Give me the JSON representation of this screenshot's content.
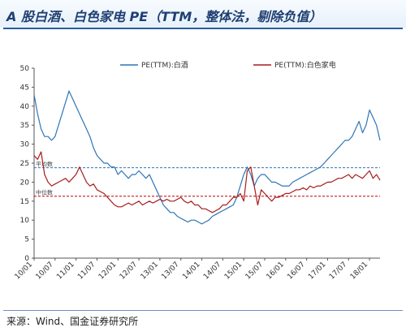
{
  "title": "A 股白酒、白色家电 PE（TTM，整体法，剔除负值）",
  "source": "来源：Wind、国金证券研究所",
  "chart_data": {
    "type": "line",
    "title": "A 股白酒、白色家电 PE（TTM，整体法，剔除负值）",
    "xlabel": "",
    "ylabel": "",
    "ylim": [
      0,
      50
    ],
    "yticks": [
      0,
      5,
      10,
      15,
      20,
      25,
      30,
      35,
      40,
      45,
      50
    ],
    "xticks": [
      "10/01",
      "10/07",
      "11/01",
      "11/07",
      "12/01",
      "12/07",
      "13/01",
      "13/07",
      "14/01",
      "14/07",
      "15/01",
      "15/07",
      "16/01",
      "16/07",
      "17/01",
      "17/07",
      "18/01"
    ],
    "x_range_months": [
      0,
      99
    ],
    "grid": false,
    "legend": "top",
    "series": [
      {
        "name": "PE(TTM):白酒",
        "color": "#2e75b6",
        "points": [
          [
            0,
            43
          ],
          [
            1,
            38
          ],
          [
            2,
            34
          ],
          [
            3,
            32
          ],
          [
            4,
            32
          ],
          [
            5,
            31
          ],
          [
            6,
            32
          ],
          [
            7,
            35
          ],
          [
            8,
            38
          ],
          [
            9,
            41
          ],
          [
            10,
            44
          ],
          [
            11,
            42
          ],
          [
            12,
            40
          ],
          [
            13,
            38
          ],
          [
            14,
            36
          ],
          [
            15,
            34
          ],
          [
            16,
            32
          ],
          [
            17,
            29
          ],
          [
            18,
            27
          ],
          [
            19,
            26
          ],
          [
            20,
            25
          ],
          [
            21,
            25
          ],
          [
            22,
            24
          ],
          [
            23,
            24
          ],
          [
            24,
            22
          ],
          [
            25,
            23
          ],
          [
            26,
            22
          ],
          [
            27,
            21
          ],
          [
            28,
            22
          ],
          [
            29,
            22
          ],
          [
            30,
            23
          ],
          [
            31,
            22
          ],
          [
            32,
            21
          ],
          [
            33,
            22
          ],
          [
            34,
            20
          ],
          [
            35,
            18
          ],
          [
            36,
            16
          ],
          [
            37,
            14
          ],
          [
            38,
            13
          ],
          [
            39,
            12
          ],
          [
            40,
            12
          ],
          [
            41,
            11
          ],
          [
            42,
            10.5
          ],
          [
            43,
            10
          ],
          [
            44,
            9.5
          ],
          [
            45,
            10
          ],
          [
            46,
            10
          ],
          [
            47,
            9.5
          ],
          [
            48,
            9
          ],
          [
            49,
            9.5
          ],
          [
            50,
            10
          ],
          [
            51,
            11
          ],
          [
            52,
            11.5
          ],
          [
            53,
            12
          ],
          [
            54,
            12.5
          ],
          [
            55,
            13
          ],
          [
            56,
            13.5
          ],
          [
            57,
            14
          ],
          [
            58,
            16
          ],
          [
            59,
            19
          ],
          [
            60,
            22
          ],
          [
            61,
            24
          ],
          [
            62,
            22
          ],
          [
            63,
            19
          ],
          [
            64,
            21
          ],
          [
            65,
            22
          ],
          [
            66,
            22
          ],
          [
            67,
            21
          ],
          [
            68,
            20
          ],
          [
            69,
            20
          ],
          [
            70,
            19.5
          ],
          [
            71,
            19
          ],
          [
            72,
            19
          ],
          [
            73,
            19
          ],
          [
            74,
            20
          ],
          [
            75,
            20.5
          ],
          [
            76,
            21
          ],
          [
            77,
            21.5
          ],
          [
            78,
            22
          ],
          [
            79,
            22.5
          ],
          [
            80,
            23
          ],
          [
            81,
            23.5
          ],
          [
            82,
            24
          ],
          [
            83,
            25
          ],
          [
            84,
            26
          ],
          [
            85,
            27
          ],
          [
            86,
            28
          ],
          [
            87,
            29
          ],
          [
            88,
            30
          ],
          [
            89,
            31
          ],
          [
            90,
            31
          ],
          [
            91,
            32
          ],
          [
            92,
            34
          ],
          [
            93,
            36
          ],
          [
            94,
            33
          ],
          [
            95,
            35
          ],
          [
            96,
            39
          ],
          [
            97,
            37
          ],
          [
            98,
            35
          ],
          [
            99,
            31
          ]
        ]
      },
      {
        "name": "PE(TTM):白色家电",
        "color": "#a61c1c",
        "points": [
          [
            0,
            27
          ],
          [
            1,
            26
          ],
          [
            2,
            28
          ],
          [
            3,
            22
          ],
          [
            4,
            20
          ],
          [
            5,
            19
          ],
          [
            6,
            19.5
          ],
          [
            7,
            20
          ],
          [
            8,
            20.5
          ],
          [
            9,
            21
          ],
          [
            10,
            20
          ],
          [
            11,
            21
          ],
          [
            12,
            22
          ],
          [
            13,
            24
          ],
          [
            14,
            22
          ],
          [
            15,
            20
          ],
          [
            16,
            19
          ],
          [
            17,
            19.5
          ],
          [
            18,
            18
          ],
          [
            19,
            17.5
          ],
          [
            20,
            17
          ],
          [
            21,
            16
          ],
          [
            22,
            15
          ],
          [
            23,
            14
          ],
          [
            24,
            13.5
          ],
          [
            25,
            13.5
          ],
          [
            26,
            14
          ],
          [
            27,
            14.5
          ],
          [
            28,
            14
          ],
          [
            29,
            14.5
          ],
          [
            30,
            15
          ],
          [
            31,
            14
          ],
          [
            32,
            14.5
          ],
          [
            33,
            15
          ],
          [
            34,
            14.5
          ],
          [
            35,
            15
          ],
          [
            36,
            15.5
          ],
          [
            37,
            15
          ],
          [
            38,
            15.5
          ],
          [
            39,
            15
          ],
          [
            40,
            15
          ],
          [
            41,
            15.5
          ],
          [
            42,
            16
          ],
          [
            43,
            15
          ],
          [
            44,
            14.5
          ],
          [
            45,
            15
          ],
          [
            46,
            14
          ],
          [
            47,
            14
          ],
          [
            48,
            13
          ],
          [
            49,
            13
          ],
          [
            50,
            12.5
          ],
          [
            51,
            12
          ],
          [
            52,
            12.5
          ],
          [
            53,
            13
          ],
          [
            54,
            14
          ],
          [
            55,
            14
          ],
          [
            56,
            15
          ],
          [
            57,
            16
          ],
          [
            58,
            16
          ],
          [
            59,
            17
          ],
          [
            60,
            15
          ],
          [
            61,
            23
          ],
          [
            62,
            24
          ],
          [
            63,
            19
          ],
          [
            64,
            14
          ],
          [
            65,
            18
          ],
          [
            66,
            17
          ],
          [
            67,
            16
          ],
          [
            68,
            15
          ],
          [
            69,
            16
          ],
          [
            70,
            16
          ],
          [
            71,
            16.5
          ],
          [
            72,
            17
          ],
          [
            73,
            17
          ],
          [
            74,
            17.5
          ],
          [
            75,
            18
          ],
          [
            76,
            18
          ],
          [
            77,
            18.5
          ],
          [
            78,
            18
          ],
          [
            79,
            19
          ],
          [
            80,
            18.5
          ],
          [
            81,
            19
          ],
          [
            82,
            19
          ],
          [
            83,
            19.5
          ],
          [
            84,
            20
          ],
          [
            85,
            20
          ],
          [
            86,
            20.5
          ],
          [
            87,
            21
          ],
          [
            88,
            21
          ],
          [
            89,
            21.5
          ],
          [
            90,
            22
          ],
          [
            91,
            21
          ],
          [
            92,
            22
          ],
          [
            93,
            21.5
          ],
          [
            94,
            21
          ],
          [
            95,
            22
          ],
          [
            96,
            23
          ],
          [
            97,
            21
          ],
          [
            98,
            22
          ],
          [
            99,
            20.5
          ]
        ]
      }
    ],
    "reference_lines": [
      {
        "label": "平均数",
        "value": 23.8,
        "color": "#2e75b6",
        "style": "dashed"
      },
      {
        "label": "中位数",
        "value": 16.3,
        "color": "#c00000",
        "style": "dashed"
      }
    ]
  }
}
